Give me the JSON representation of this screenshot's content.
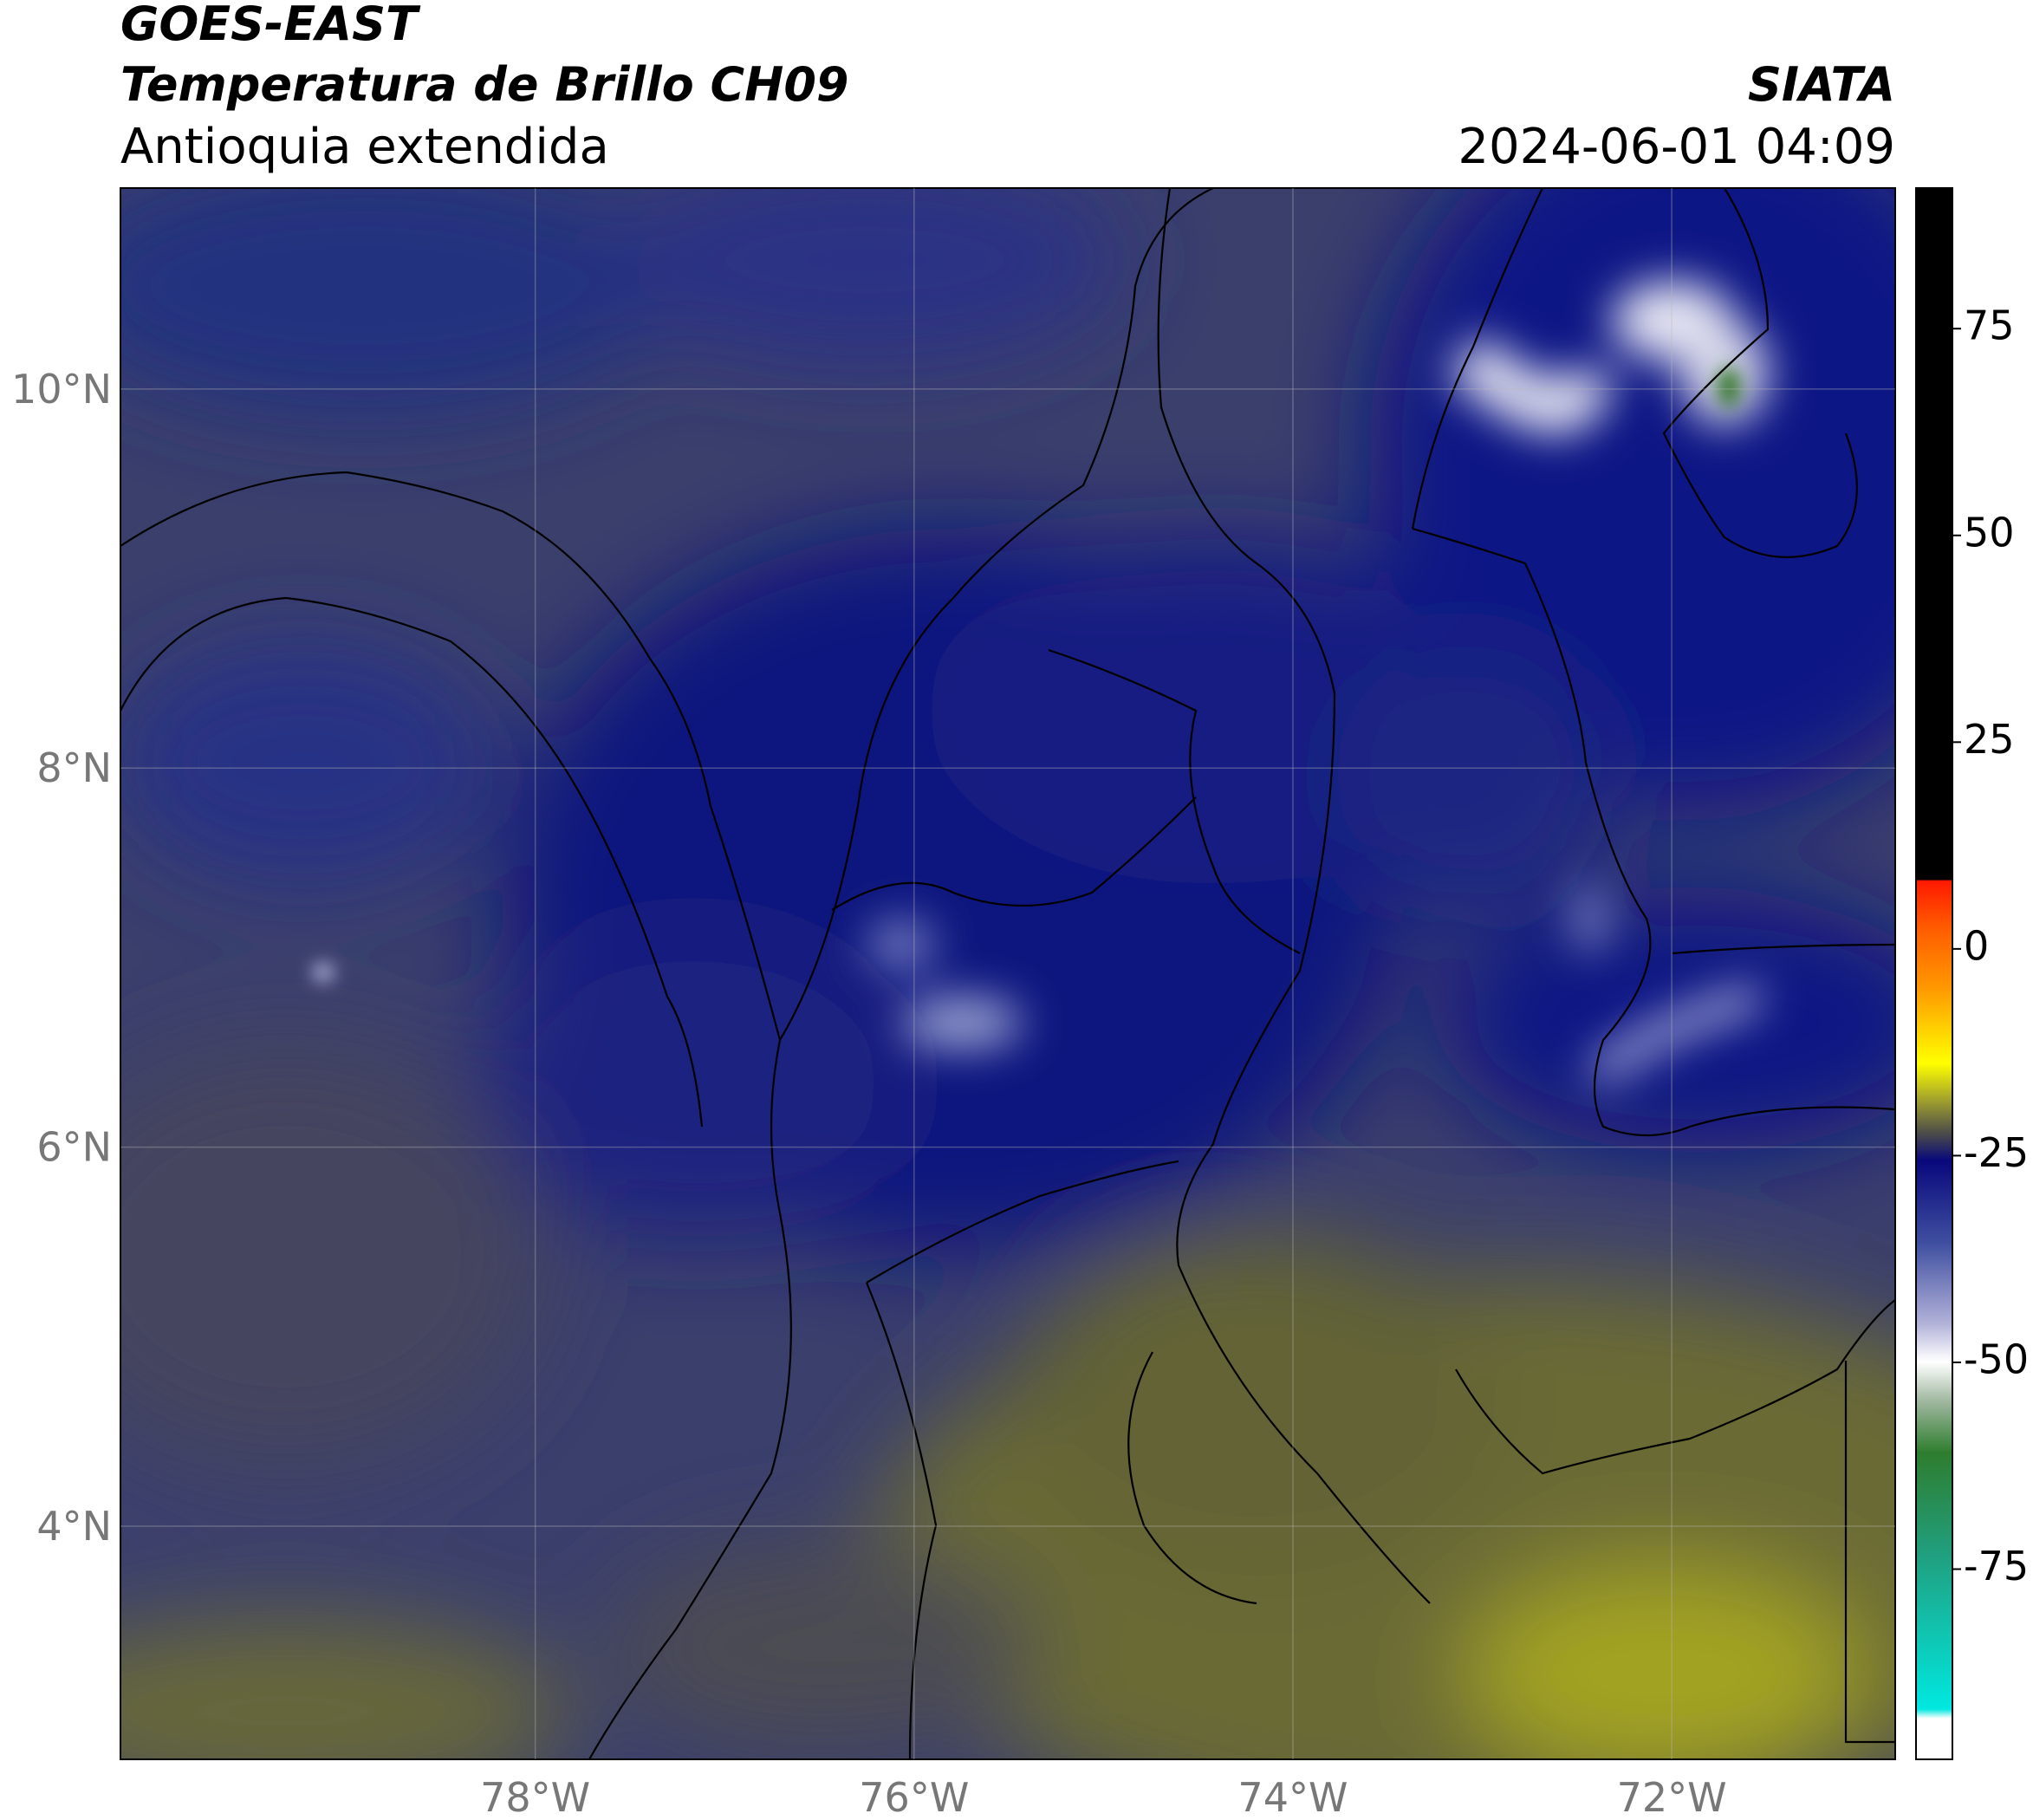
{
  "chart_data": {
    "type": "map",
    "title": "GOES-EAST",
    "subtitle": "Temperatura de Brillo CH09",
    "region": "Antioquia extendida",
    "source": "SIATA",
    "timestamp": "2024-06-01 04:09",
    "xlim": [
      -80.19,
      -70.82
    ],
    "ylim": [
      2.77,
      11.06
    ],
    "xticks": [
      {
        "value": -78,
        "label": "78°W"
      },
      {
        "value": -76,
        "label": "76°W"
      },
      {
        "value": -74,
        "label": "74°W"
      },
      {
        "value": -72,
        "label": "72°W"
      }
    ],
    "yticks": [
      {
        "value": 4,
        "label": "4°N"
      },
      {
        "value": 6,
        "label": "6°N"
      },
      {
        "value": 8,
        "label": "8°N"
      },
      {
        "value": 10,
        "label": "10°N"
      }
    ],
    "grid": true,
    "colorbar": {
      "lim": [
        -98,
        92
      ],
      "ticks": [
        -75,
        -50,
        -25,
        0,
        25,
        50,
        75
      ]
    }
  }
}
